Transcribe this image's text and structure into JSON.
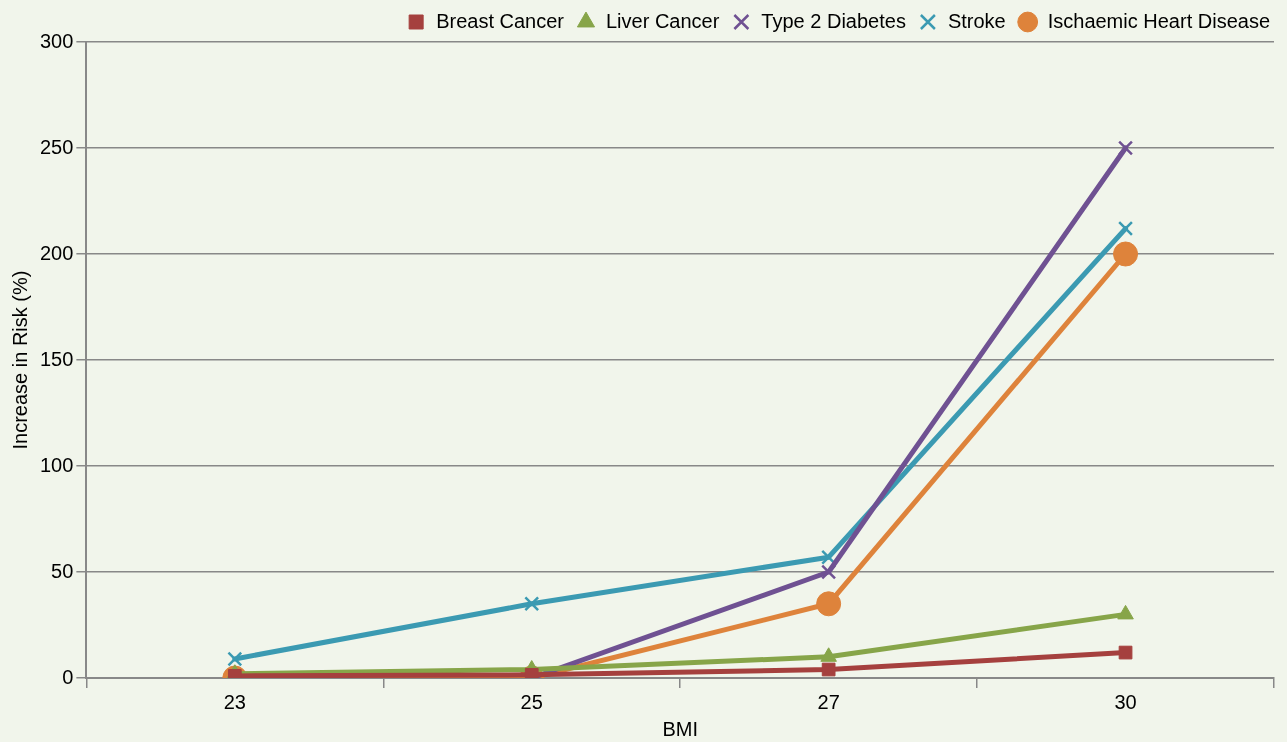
{
  "chart_data": {
    "type": "line",
    "xlabel": "BMI",
    "ylabel": "Increase in Risk (%)",
    "categories": [
      "23",
      "25",
      "27",
      "30"
    ],
    "series": [
      {
        "name": "Breast Cancer",
        "color": "#a5403e",
        "marker": "square",
        "values": [
          1,
          1.5,
          4,
          12
        ]
      },
      {
        "name": "Liver Cancer",
        "color": "#87a549",
        "marker": "triangle",
        "values": [
          2,
          4,
          10,
          30
        ]
      },
      {
        "name": "Type 2 Diabetes",
        "color": "#6f5192",
        "marker": "cross",
        "values": [
          null,
          0,
          50,
          250
        ]
      },
      {
        "name": "Stroke",
        "color": "#3b9ab2",
        "marker": "cross",
        "values": [
          9,
          35,
          57,
          212
        ]
      },
      {
        "name": "Ischaemic Heart Disease",
        "color": "#de833b",
        "marker": "circle",
        "values": [
          0,
          0,
          35,
          200
        ]
      }
    ],
    "ylim": [
      0,
      300
    ],
    "yticks": [
      0,
      50,
      100,
      150,
      200,
      250,
      300
    ],
    "grid": "y",
    "legend": "top",
    "line_style": "solid"
  }
}
